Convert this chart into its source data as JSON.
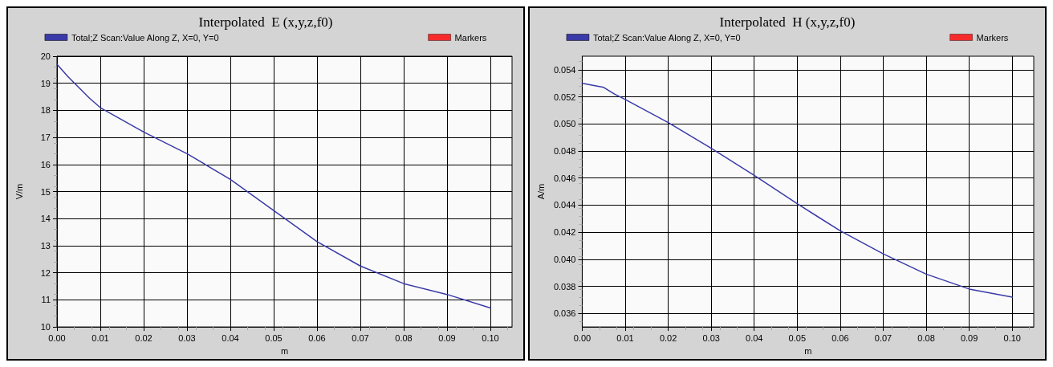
{
  "chart_data": [
    {
      "type": "line",
      "title": "Interpolated  E (x,y,z,f0)",
      "xlabel": "m",
      "ylabel": "V/m",
      "legend": "top",
      "grid": true,
      "marker": "none",
      "line_style": "solid",
      "xlim": [
        0,
        0.105
      ],
      "xticks": [
        {
          "value": 0,
          "label": "0.00"
        },
        {
          "value": 0.01,
          "label": "0.01"
        },
        {
          "value": 0.02,
          "label": "0.02"
        },
        {
          "value": 0.03,
          "label": "0.03"
        },
        {
          "value": 0.04,
          "label": "0.04"
        },
        {
          "value": 0.05,
          "label": "0.05"
        },
        {
          "value": 0.06,
          "label": "0.06"
        },
        {
          "value": 0.07,
          "label": "0.07"
        },
        {
          "value": 0.08,
          "label": "0.08"
        },
        {
          "value": 0.09,
          "label": "0.09"
        },
        {
          "value": 0.1,
          "label": "0.10"
        }
      ],
      "ylim": [
        10,
        20
      ],
      "yticks": [
        10,
        11,
        12,
        13,
        14,
        15,
        16,
        17,
        18,
        19,
        20
      ],
      "x": [
        0,
        0.0025,
        0.005,
        0.0075,
        0.01,
        0.02,
        0.03,
        0.04,
        0.05,
        0.06,
        0.07,
        0.08,
        0.09,
        0.1
      ],
      "series": [
        {
          "name": "Total;Z Scan:Value Along Z, X=0, Y=0",
          "color": "#3a3aa8",
          "values": [
            19.7,
            19.25,
            18.85,
            18.45,
            18.1,
            17.2,
            16.4,
            15.45,
            14.3,
            13.15,
            12.25,
            11.6,
            11.2,
            10.7
          ]
        },
        {
          "name": "Markers",
          "type": "scatter",
          "color": "#ff0000",
          "values": [
            null,
            null,
            null,
            null,
            null,
            null,
            null,
            null,
            null,
            null,
            null,
            null,
            null,
            null
          ]
        }
      ]
    },
    {
      "type": "line",
      "title": "Interpolated  H (x,y,z,f0)",
      "xlabel": "m",
      "ylabel": "A/m",
      "legend": "top",
      "grid": true,
      "marker": "none",
      "line_style": "solid",
      "xlim": [
        0,
        0.105
      ],
      "xticks": [
        {
          "value": 0,
          "label": "0.00"
        },
        {
          "value": 0.01,
          "label": "0.01"
        },
        {
          "value": 0.02,
          "label": "0.02"
        },
        {
          "value": 0.03,
          "label": "0.03"
        },
        {
          "value": 0.04,
          "label": "0.04"
        },
        {
          "value": 0.05,
          "label": "0.05"
        },
        {
          "value": 0.06,
          "label": "0.06"
        },
        {
          "value": 0.07,
          "label": "0.07"
        },
        {
          "value": 0.08,
          "label": "0.08"
        },
        {
          "value": 0.09,
          "label": "0.09"
        },
        {
          "value": 0.1,
          "label": "0.10"
        }
      ],
      "ylim": [
        0.035,
        0.055
      ],
      "yticks": [
        0.036,
        0.038,
        {
          "value": 0.04,
          "label": "0.040"
        },
        0.042,
        0.044,
        0.046,
        0.048,
        {
          "value": 0.05,
          "label": "0.050"
        },
        0.052,
        0.054
      ],
      "x": [
        0,
        0.005,
        0.0075,
        0.01,
        0.02,
        0.03,
        0.04,
        0.05,
        0.06,
        0.07,
        0.08,
        0.09,
        0.1
      ],
      "series": [
        {
          "name": "Total;Z Scan:Value Along Z, X=0, Y=0",
          "color": "#3a3aa8",
          "values": [
            0.053,
            0.0527,
            0.0522,
            0.0518,
            0.0501,
            0.0482,
            0.0462,
            0.0441,
            0.0421,
            0.0404,
            0.0389,
            0.0378,
            0.0372
          ]
        },
        {
          "name": "Markers",
          "type": "scatter",
          "color": "#ff0000",
          "values": [
            null,
            null,
            null,
            null,
            null,
            null,
            null,
            null,
            null,
            null,
            null,
            null,
            null
          ]
        }
      ]
    }
  ]
}
